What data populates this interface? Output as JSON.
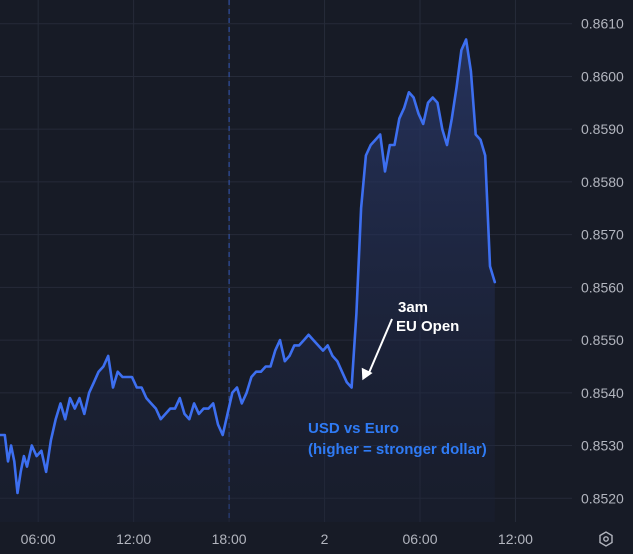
{
  "chart_data": {
    "type": "area",
    "title": "",
    "xlabel": "",
    "ylabel": "",
    "y_ticks": [
      "0.8610",
      "0.8600",
      "0.8590",
      "0.8580",
      "0.8570",
      "0.8560",
      "0.8550",
      "0.8540",
      "0.8530",
      "0.8520"
    ],
    "x_ticks": [
      {
        "label": "06:00",
        "hours": 6
      },
      {
        "label": "12:00",
        "hours": 12
      },
      {
        "label": "18:00",
        "hours": 18
      },
      {
        "label": "2",
        "hours": 24
      },
      {
        "label": "06:00",
        "hours": 30
      },
      {
        "label": "12:00",
        "hours": 36
      }
    ],
    "x_unit": "hours from start of day 1",
    "ylim": [
      0.85155,
      0.86145
    ],
    "xlim": [
      3.6,
      38.8
    ],
    "grid": true,
    "session_divider_hours": 18,
    "colors": {
      "line": "#3d6ff0",
      "fill_top": "#2a3a6e",
      "background": "#171b26",
      "grid": "#262b39",
      "caption": "#2f7bf5",
      "annotation": "#ffffff"
    },
    "series": [
      {
        "x": [
          3.6,
          3.9,
          4.1,
          4.3,
          4.5,
          4.7,
          4.9,
          5.1,
          5.3,
          5.6,
          5.9,
          6.2,
          6.5,
          6.8,
          7.1,
          7.4,
          7.7,
          8.0,
          8.3,
          8.6,
          8.9,
          9.2,
          9.5,
          9.8,
          10.1,
          10.4,
          10.7,
          11.0,
          11.3,
          11.6,
          11.9,
          12.2,
          12.5,
          12.8,
          13.1,
          13.4,
          13.7,
          14.0,
          14.3,
          14.6,
          14.9,
          15.2,
          15.5,
          15.8,
          16.1,
          16.4,
          16.7,
          17.0,
          17.3,
          17.6,
          17.9,
          18.2,
          18.5,
          18.8,
          19.1,
          19.4,
          19.7,
          20.0,
          20.3,
          20.6,
          20.9,
          21.2,
          21.5,
          21.8,
          22.1,
          22.4,
          22.7,
          23.0,
          23.3,
          23.6,
          23.9,
          24.2,
          24.5,
          24.8,
          25.1,
          25.4,
          25.7,
          26.0,
          26.3,
          26.6,
          26.9,
          27.2,
          27.5,
          27.8,
          28.1,
          28.4,
          28.7,
          29.0,
          29.3,
          29.6,
          29.9,
          30.2,
          30.5,
          30.8,
          31.1,
          31.4,
          31.7,
          32.0,
          32.3,
          32.6,
          32.9,
          33.2,
          33.5,
          33.8,
          34.1,
          34.4,
          34.7
        ],
        "y": [
          0.8532,
          0.8532,
          0.8527,
          0.853,
          0.8527,
          0.8521,
          0.8525,
          0.8528,
          0.8526,
          0.853,
          0.8528,
          0.8529,
          0.8525,
          0.8531,
          0.8535,
          0.8538,
          0.8535,
          0.8539,
          0.8537,
          0.8539,
          0.8536,
          0.854,
          0.8542,
          0.8544,
          0.8545,
          0.8547,
          0.8541,
          0.8544,
          0.8543,
          0.8543,
          0.8543,
          0.8541,
          0.8541,
          0.8539,
          0.8538,
          0.8537,
          0.8535,
          0.8536,
          0.8537,
          0.8537,
          0.8539,
          0.8536,
          0.8535,
          0.8538,
          0.8536,
          0.8537,
          0.8537,
          0.8538,
          0.8534,
          0.8532,
          0.8536,
          0.854,
          0.8541,
          0.8538,
          0.854,
          0.8543,
          0.8544,
          0.8544,
          0.8545,
          0.8545,
          0.8548,
          0.855,
          0.8546,
          0.8547,
          0.8549,
          0.8549,
          0.855,
          0.8551,
          0.855,
          0.8549,
          0.8548,
          0.8549,
          0.8547,
          0.8546,
          0.8544,
          0.8542,
          0.8541,
          0.8555,
          0.8575,
          0.8585,
          0.8587,
          0.8588,
          0.8589,
          0.8582,
          0.8587,
          0.8587,
          0.8592,
          0.8594,
          0.8597,
          0.8596,
          0.8593,
          0.8591,
          0.8595,
          0.8596,
          0.8595,
          0.859,
          0.8587,
          0.8592,
          0.8598,
          0.8605,
          0.8607,
          0.8601,
          0.8589,
          0.8588,
          0.8585,
          0.8564,
          0.8561
        ]
      }
    ],
    "annotations": {
      "callout_line1": "3am",
      "callout_line2": "EU Open",
      "callout_target": {
        "x": 26.0,
        "y": 0.8542
      },
      "caption_line1": "USD vs Euro",
      "caption_line2": "(higher = stronger dollar)"
    }
  },
  "toolbar": {
    "settings_icon": "settings-icon"
  }
}
